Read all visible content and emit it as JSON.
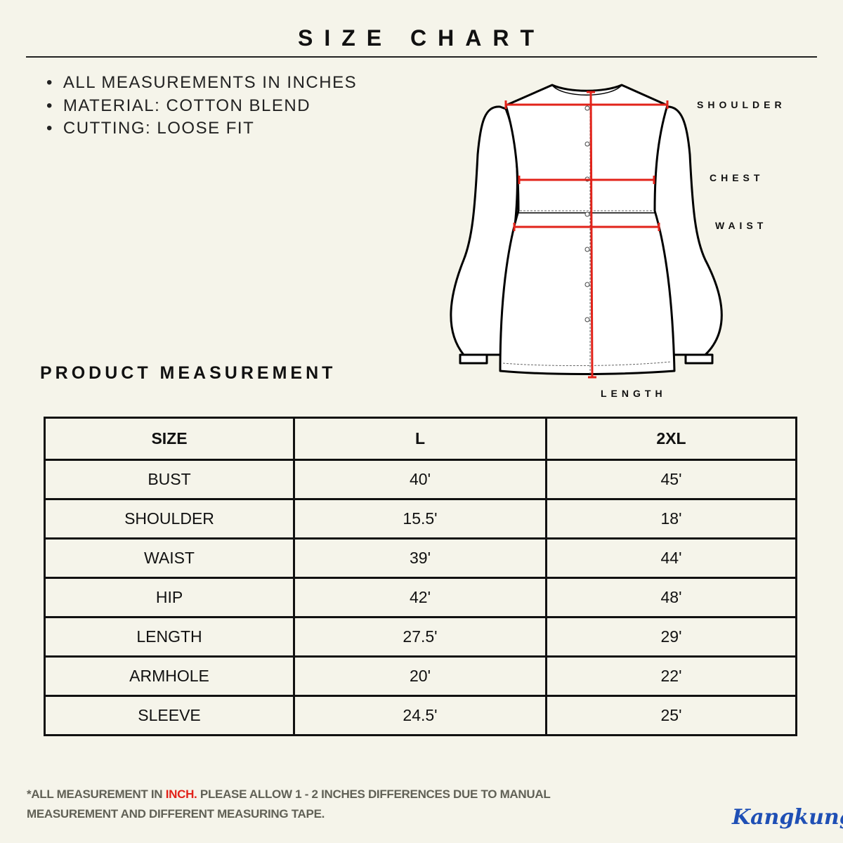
{
  "title": "SIZE CHART",
  "notes": [
    "ALL MEASUREMENTS IN INCHES",
    "MATERIAL: COTTON BLEND",
    "CUTTING: LOOSE FIT"
  ],
  "diagram_labels": {
    "shoulder": "SHOULDER",
    "chest": "CHEST",
    "waist": "WAIST",
    "length": "LENGTH"
  },
  "section_title": "PRODUCT MEASUREMENT",
  "table": {
    "headers": [
      "SIZE",
      "L",
      "2XL"
    ],
    "rows": [
      [
        "BUST",
        "40'",
        "45'"
      ],
      [
        "SHOULDER",
        "15.5'",
        "18'"
      ],
      [
        "WAIST",
        "39'",
        "44'"
      ],
      [
        "HIP",
        "42'",
        "48'"
      ],
      [
        "LENGTH",
        "27.5'",
        "29'"
      ],
      [
        "ARMHOLE",
        "20'",
        "22'"
      ],
      [
        "SLEEVE",
        "24.5'",
        "25'"
      ]
    ]
  },
  "footer": {
    "prefix": "*ALL MEASUREMENT IN ",
    "highlight": "INCH.",
    "rest": " PLEASE ALLOW 1 - 2 INCHES DIFFERENCES DUE TO MANUAL",
    "line2": "MEASUREMENT AND DIFFERENT MEASURING TAPE."
  },
  "logo": "Kangkung",
  "colors": {
    "background": "#f5f4ea",
    "measure_line": "#e2231a",
    "highlight": "#e2231a",
    "logo": "#1f4fb5",
    "footer_text": "#616156"
  }
}
